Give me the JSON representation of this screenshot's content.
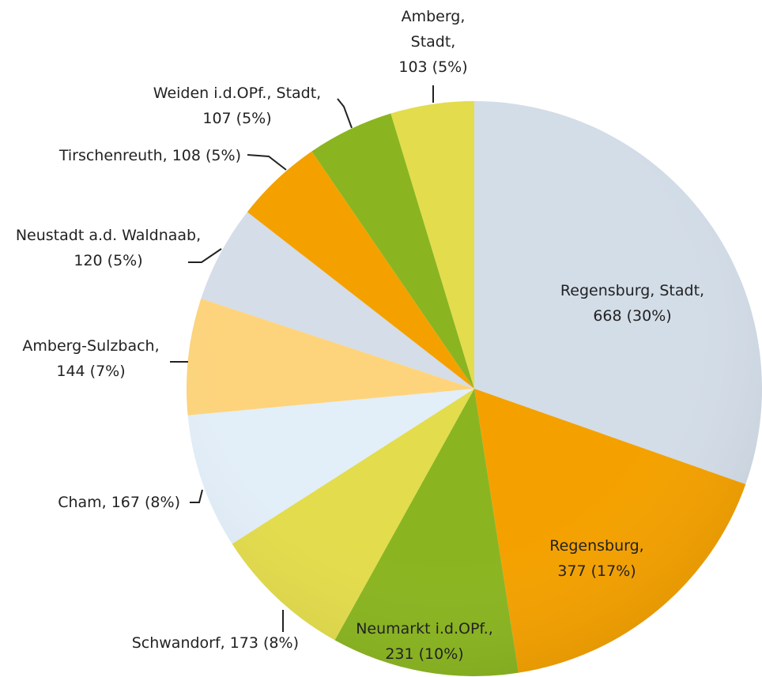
{
  "chart_data": {
    "type": "pie",
    "categories": [
      "Regensburg, Stadt,",
      "Regensburg,",
      "Neumarkt i.d.OPf.,",
      "Schwandorf,",
      "Cham,",
      "Amberg-Sulzbach,",
      "Neustadt a.d. Waldnaab,",
      "Tirschenreuth,",
      "Weiden i.d.OPf., Stadt,",
      "Amberg, Stadt,"
    ],
    "values": [
      668,
      377,
      231,
      173,
      167,
      144,
      120,
      108,
      107,
      103
    ],
    "value_labels": [
      "668 (30%)",
      "377 (17%)",
      "231 (10%)",
      "173 (8%)",
      "167 (8%)",
      "144 (7%)",
      "120 (5%)",
      "108 (5%)",
      "107 (5%)",
      "103 (5%)"
    ],
    "colors": [
      "#d3dde8",
      "#f4a100",
      "#8ab520",
      "#e3dc4c",
      "#e2eef8",
      "#fdd47c",
      "#d4dde8",
      "#f4a100",
      "#8ab520",
      "#e3dc4c"
    ]
  }
}
